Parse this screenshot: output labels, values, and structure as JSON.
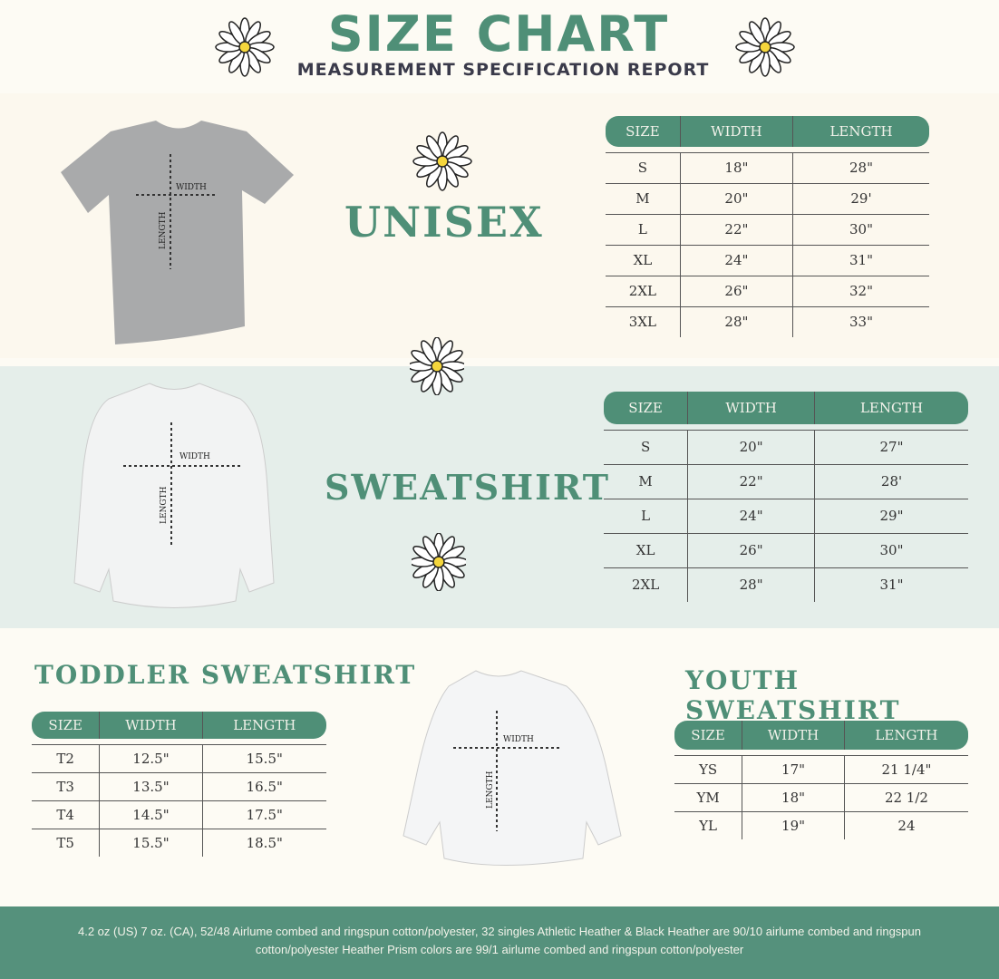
{
  "header": {
    "title": "SIZE CHART",
    "subtitle": "MEASUREMENT SPECIFICATION REPORT"
  },
  "colors": {
    "accent": "#4f8f77",
    "footer": "#55917c"
  },
  "diagram_labels": {
    "width": "WIDTH",
    "length": "LENGTH"
  },
  "columns": [
    "SIZE",
    "WIDTH",
    "LENGTH"
  ],
  "unisex": {
    "title": "UNISEX",
    "rows": [
      [
        "S",
        "18\"",
        "28\""
      ],
      [
        "M",
        "20\"",
        "29'"
      ],
      [
        "L",
        "22\"",
        "30\""
      ],
      [
        "XL",
        "24\"",
        "31\""
      ],
      [
        "2XL",
        "26\"",
        "32\""
      ],
      [
        "3XL",
        "28\"",
        "33\""
      ]
    ]
  },
  "sweatshirt": {
    "title": "SWEATSHIRT",
    "rows": [
      [
        "S",
        "20\"",
        "27\""
      ],
      [
        "M",
        "22\"",
        "28'"
      ],
      [
        "L",
        "24\"",
        "29\""
      ],
      [
        "XL",
        "26\"",
        "30\""
      ],
      [
        "2XL",
        "28\"",
        "31\""
      ]
    ]
  },
  "toddler": {
    "title": "TODDLER SWEATSHIRT",
    "rows": [
      [
        "T2",
        "12.5\"",
        "15.5\""
      ],
      [
        "T3",
        "13.5\"",
        "16.5\""
      ],
      [
        "T4",
        "14.5\"",
        "17.5\""
      ],
      [
        "T5",
        "15.5\"",
        "18.5\""
      ]
    ]
  },
  "youth": {
    "title": "YOUTH SWEATSHIRT",
    "rows": [
      [
        "YS",
        "17\"",
        "21 1/4\""
      ],
      [
        "YM",
        "18\"",
        "22 1/2"
      ],
      [
        "YL",
        "19\"",
        "24"
      ]
    ]
  },
  "footer": {
    "text": "4.2 oz (US) 7 oz. (CA), 52/48 Airlume combed and ringspun cotton/polyester, 32 singles Athletic Heather & Black Heather are 90/10 airlume combed and ringspun cotton/polyester Heather Prism colors are 99/1 airlume combed and ringspun cotton/polyester"
  }
}
